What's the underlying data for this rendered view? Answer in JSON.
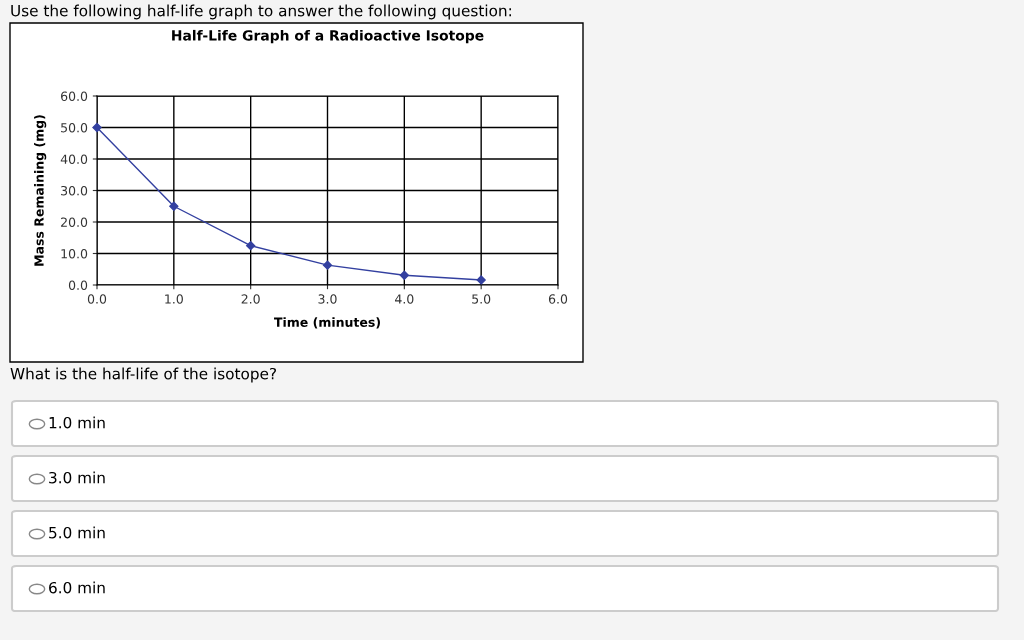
{
  "chart_data": {
    "type": "line",
    "title": "Half-Life Graph of a Radioactive Isotope",
    "xlabel": "Time (minutes)",
    "ylabel": "Mass Remaining (mg)",
    "x": [
      0,
      1,
      2,
      3,
      4,
      5
    ],
    "series": [
      {
        "color": "#3340a0",
        "values": [
          50,
          25,
          12.5,
          6.3,
          3.1,
          1.6
        ]
      }
    ],
    "xlim": [
      0,
      6
    ],
    "xticks": [
      {
        "value": 0,
        "label": "0.0"
      },
      {
        "value": 1,
        "label": "1.0"
      },
      {
        "value": 2,
        "label": "2.0"
      },
      {
        "value": 3,
        "label": "3.0"
      },
      {
        "value": 4,
        "label": "4.0"
      },
      {
        "value": 5,
        "label": "5.0"
      },
      {
        "value": 6,
        "label": "6.0"
      }
    ],
    "ylim": [
      0,
      60
    ],
    "yticks": [
      {
        "value": 0,
        "label": "0.0"
      },
      {
        "value": 10,
        "label": "10.0"
      },
      {
        "value": 20,
        "label": "20.0"
      },
      {
        "value": 30,
        "label": "30.0"
      },
      {
        "value": 40,
        "label": "40.0"
      },
      {
        "value": 50,
        "label": "50.0"
      },
      {
        "value": 60,
        "label": "60.0"
      }
    ],
    "grid": true,
    "marker": "diamond",
    "line_style": "solid",
    "annotations": [
      "Use the following half-life graph to answer the following question:",
      "What is the half-life of the isotope?",
      "1.0 min",
      "3.0 min",
      "5.0 min",
      "6.0 min"
    ]
  }
}
